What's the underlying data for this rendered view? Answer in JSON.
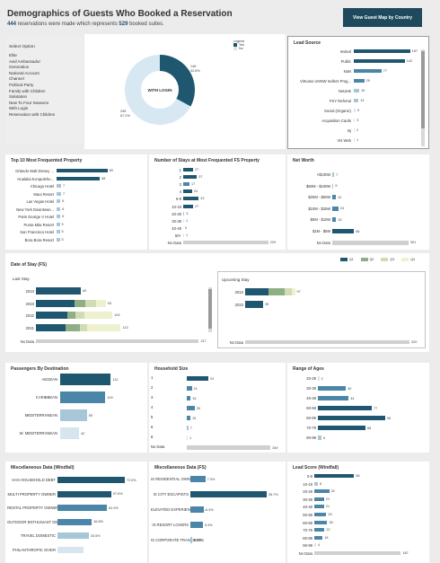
{
  "header": {
    "title": "Demographics of Guests Who Booked a Reservation",
    "reservations": "444",
    "text_mid": " reservations were made which represents ",
    "suites": "529",
    "text_end": " booked suites.",
    "map_button": "View Guest Map by Country"
  },
  "colors": {
    "dark": "#1f5771",
    "mid": "#4b86a8",
    "light": "#a7c6d8",
    "pale": "#d7e5ee",
    "green": "#8fae85",
    "lightgreen": "#cfdcb4",
    "yellow": "#eef1cf",
    "grey": "#cfcfcf"
  },
  "filter": {
    "title": "Select Option",
    "options": [
      "Elite",
      "Avid Ambassador",
      "Generation",
      "National Account",
      "Channel",
      "Political Party",
      "Family with Children",
      "Salutation",
      "New To Four Seasons",
      "With Login",
      "Reservation with Children"
    ]
  },
  "donut": {
    "center_label": "WITH LOGIN",
    "legend_title": "Legend",
    "legend_yes": "Yes",
    "legend_no": "No",
    "yes_count": "146",
    "yes_pct": "32.8%",
    "no_count": "298",
    "no_pct": "67.2%",
    "yes_fraction": 0.328
  },
  "lead_source": {
    "title": "Lead Source",
    "rows": [
      {
        "label": "Invited",
        "value": 157
      },
      {
        "label": "Public",
        "value": 142
      },
      {
        "label": "NaN",
        "value": 77
      },
      {
        "label": "Virtuoso UHNW Sellers Prog...",
        "value": 29
      },
      {
        "label": "NetJets",
        "value": 15
      },
      {
        "label": "FSY Referral",
        "value": 13
      },
      {
        "label": "Social (Organic)",
        "value": 5
      },
      {
        "label": "Acquisition Cards",
        "value": 3
      },
      {
        "label": "Inj",
        "value": 2
      },
      {
        "label": "Vis Web",
        "value": 1
      }
    ],
    "max": 160
  },
  "top10": {
    "title": "Top 10 Most Frequented Property",
    "rows": [
      {
        "label": "Orlando Walt Disney ...",
        "value": 80
      },
      {
        "label": "Hualalai Ka'upulehu...",
        "value": 68
      },
      {
        "label": "Chicago Hotel",
        "value": 7
      },
      {
        "label": "Maui Resort",
        "value": 7
      },
      {
        "label": "Las Vegas Hotel",
        "value": 6
      },
      {
        "label": "New York Downtown...",
        "value": 6
      },
      {
        "label": "Paris George V Hotel",
        "value": 6
      },
      {
        "label": "Punta Mita Resort",
        "value": 5
      },
      {
        "label": "San Francisco Hotel",
        "value": 5
      },
      {
        "label": "Bora Bora Resort",
        "value": 5
      }
    ],
    "max": 82
  },
  "stays": {
    "title": "Number of Stays at Most Frequented FS Property",
    "rows": [
      {
        "label": "1",
        "value": 27
      },
      {
        "label": "2",
        "value": 37
      },
      {
        "label": "3",
        "value": 17
      },
      {
        "label": "4",
        "value": 24
      },
      {
        "label": "5-9",
        "value": 42
      },
      {
        "label": "10-19",
        "value": 27
      },
      {
        "label": "20-29",
        "value": 3
      },
      {
        "label": "30-39",
        "value": 1
      },
      {
        "label": "40-49",
        "value": 0
      },
      {
        "label": "50+",
        "value": 1
      },
      {
        "label": "No Data",
        "value": 229
      }
    ],
    "max": 232
  },
  "networth": {
    "title": "Net Worth",
    "rows": [
      {
        "label": "<$100M",
        "value": 7
      },
      {
        "label": "$50M - $100M",
        "value": 5
      },
      {
        "label": "$25M - $50M",
        "value": 14
      },
      {
        "label": "$10M - $25M",
        "value": 24
      },
      {
        "label": "$5M - $10M",
        "value": 15
      },
      {
        "label": "$1M - $5M",
        "value": 86
      },
      {
        "label": "No Data",
        "value": 301
      }
    ],
    "max": 305
  },
  "date_of_stay": {
    "title": "Date of Stay (FS)",
    "legend": [
      "Q1",
      "Q2",
      "Q3",
      "Q4"
    ],
    "last_label": "Last Stay",
    "last_rows": [
      {
        "label": "2024",
        "segments": [
          60,
          0,
          0,
          0
        ],
        "total": "60"
      },
      {
        "label": "2023",
        "segments": [
          52,
          14,
          14,
          13
        ],
        "total": "93"
      },
      {
        "label": "2022",
        "segments": [
          42,
          11,
          12,
          37
        ],
        "total": "102"
      },
      {
        "label": "2021",
        "segments": [
          40,
          18,
          10,
          45
        ],
        "total": "113"
      }
    ],
    "last_nodata_label": "No Data",
    "last_nodata": 217,
    "last_max": 220,
    "upcoming_label": "Upcoming Stay",
    "up_rows": [
      {
        "label": "2024",
        "segments": [
          45,
          32,
          14,
          6
        ],
        "total": "97"
      },
      {
        "label": "2023",
        "segments": [
          35,
          0,
          0,
          0
        ],
        "total": "35"
      }
    ],
    "up_nodata_label": "No Data",
    "up_nodata": 320,
    "up_max": 325
  },
  "passengers": {
    "title": "Passengers By Destination",
    "rows": [
      {
        "label": "AEGEAN",
        "value": 112
      },
      {
        "label": "CARIBBEAN",
        "value": 100
      },
      {
        "label": "MEDITERRANEAN",
        "value": 59
      },
      {
        "label": "W. MEDITERRANEAN",
        "value": 42
      }
    ],
    "max": 115
  },
  "household": {
    "title": "Household Size",
    "rows": [
      {
        "label": "1",
        "value": 91
      },
      {
        "label": "2",
        "value": 21
      },
      {
        "label": "3",
        "value": 16
      },
      {
        "label": "4",
        "value": 33
      },
      {
        "label": "5",
        "value": 15
      },
      {
        "label": "6",
        "value": 7
      },
      {
        "label": "8",
        "value": 1
      },
      {
        "label": "No Data",
        "value": 349
      }
    ],
    "max": 352
  },
  "ages": {
    "title": "Range of Ages",
    "rows": [
      {
        "label": "20-29",
        "value": 2
      },
      {
        "label": "30-39",
        "value": 40
      },
      {
        "label": "40-49",
        "value": 44
      },
      {
        "label": "50-59",
        "value": 77
      },
      {
        "label": "60-69",
        "value": 96
      },
      {
        "label": "70-79",
        "value": 68
      },
      {
        "label": "80-89",
        "value": 5
      }
    ],
    "max": 100
  },
  "misc_windfall": {
    "title": "Miscellaneous Data (Windfall)",
    "rows": [
      {
        "label": "HAS HOUSEHOLD DEBT",
        "value": 72.0,
        "text": "72.0%"
      },
      {
        "label": "MULTI PROPERTY OWNER",
        "value": 57.6,
        "text": "57.6%"
      },
      {
        "label": "RENTAL PROPERTY OWNER",
        "value": 52.9,
        "text": "52.9%"
      },
      {
        "label": "OUTDOOR ENTHUSIAST GENERAL",
        "value": 36.8,
        "text": "36.8%"
      },
      {
        "label": "TRAVEL DOMESTIC",
        "value": 33.5,
        "text": "33.5%"
      },
      {
        "label": "PHILANTHROPIC GIVER",
        "value": 28.0,
        "text": ""
      }
    ],
    "max": 75
  },
  "misc_fs": {
    "title": "Miscellaneous Data (FS)",
    "rows": [
      {
        "label": "IS RESIDENTIAL OWNER",
        "value": 7.0,
        "text": "7.0%"
      },
      {
        "label": "IS CITY ESCAPISTS",
        "value": 35.7,
        "text": "35.7%"
      },
      {
        "label": "ELEVATED EXPERIENCE SEE...",
        "value": 6.3,
        "text": "6.3%"
      },
      {
        "label": "IS RESORT LOVERS",
        "value": 5.9,
        "text": "5.9%"
      },
      {
        "label": "IS CORPORATE TRANSIENTS",
        "value": 0.9,
        "text": "0.9%"
      }
    ],
    "max": 37
  },
  "lead_score": {
    "title": "Lead Score (Windfall)",
    "rows": [
      {
        "label": "0-9",
        "value": 86
      },
      {
        "label": "10-19",
        "value": 8
      },
      {
        "label": "20-29",
        "value": 32
      },
      {
        "label": "30-39",
        "value": 21
      },
      {
        "label": "40-49",
        "value": 21
      },
      {
        "label": "50-59",
        "value": 26
      },
      {
        "label": "60-69",
        "value": 28
      },
      {
        "label": "70-79",
        "value": 22
      },
      {
        "label": "80-89",
        "value": 18
      },
      {
        "label": "90-99",
        "value": 4
      },
      {
        "label": "No Data",
        "value": 187
      }
    ],
    "max": 190
  }
}
